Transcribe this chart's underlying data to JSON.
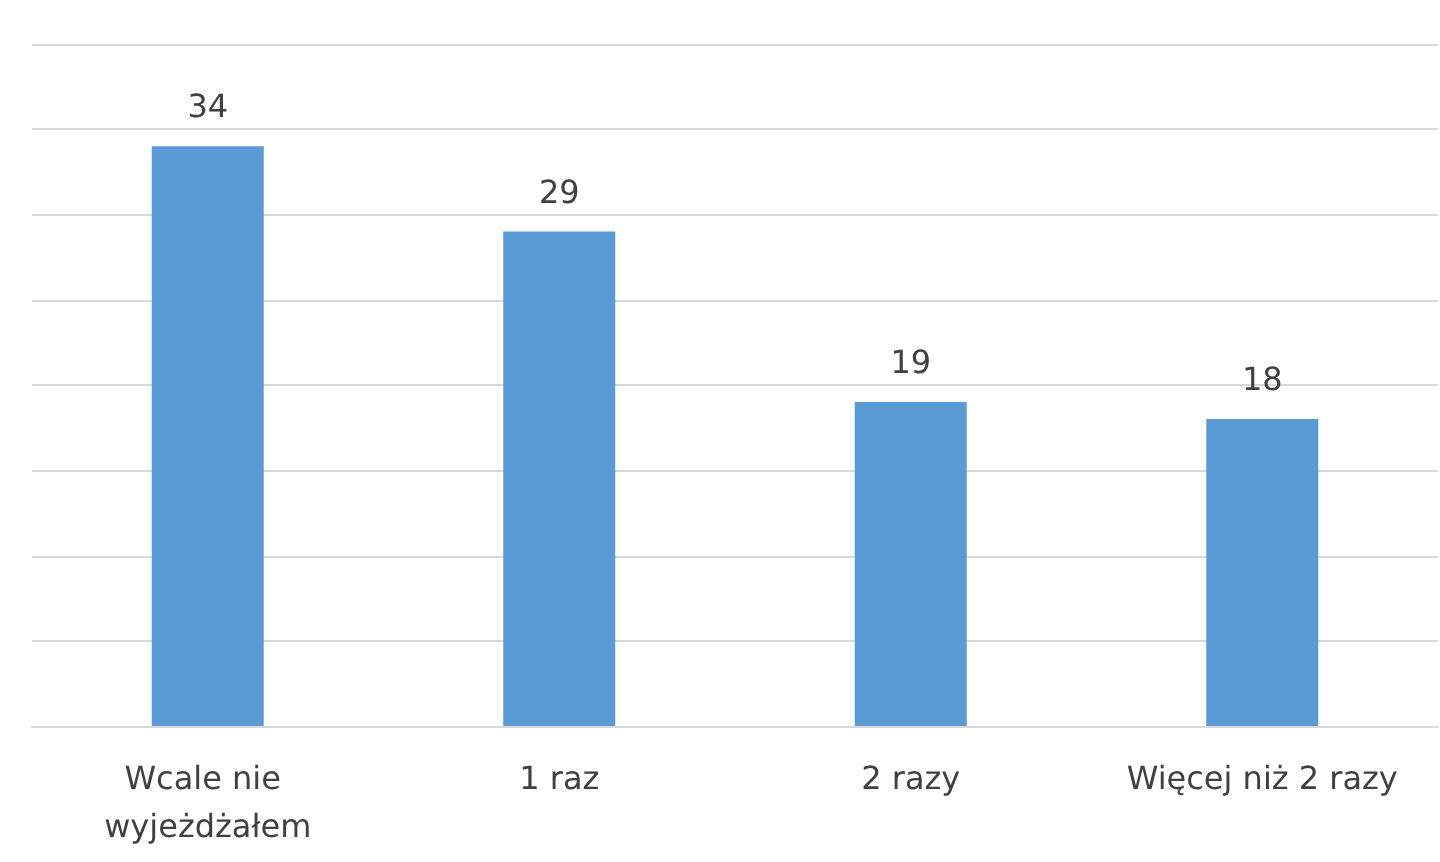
{
  "chart_data": {
    "type": "bar",
    "categories": [
      "Wcale nie wyjeżdżałem",
      "1 raz",
      "2 razy",
      "Więcej niż 2 razy"
    ],
    "values": [
      34,
      29,
      19,
      18
    ],
    "color": "#5b9bd5",
    "data_labels": true,
    "ylim": [
      0,
      40
    ],
    "yticks": [
      {
        "value": 0,
        "label": null
      },
      {
        "value": 5,
        "label": null
      },
      {
        "value": 10,
        "label": null
      },
      {
        "value": 15,
        "label": null
      },
      {
        "value": 20,
        "label": null
      },
      {
        "value": 25,
        "label": null
      },
      {
        "value": 30,
        "label": null
      },
      {
        "value": 35,
        "label": null
      },
      {
        "value": 40,
        "label": null
      }
    ],
    "grid": "y",
    "tick_labels": "x"
  }
}
